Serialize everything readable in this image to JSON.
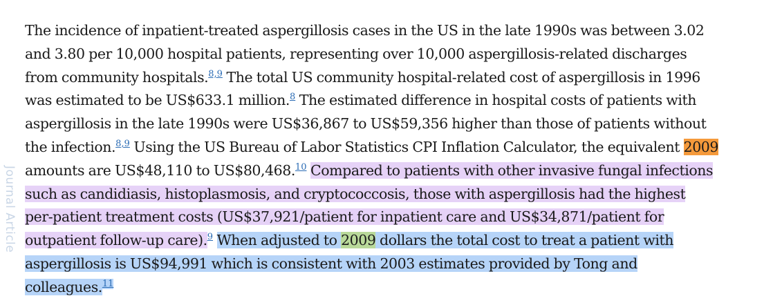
{
  "margin_text": "Journal Article",
  "lines": [
    {
      "segments": [
        {
          "t": "The incidence of inpatient-treated aspergillosis cases in the US in the late 1990s was between 3.02",
          "h": ""
        }
      ]
    },
    {
      "segments": [
        {
          "t": "and 3.80 per 10,000 hospital patients, representing over 10,000 aspergillosis-related discharges",
          "h": ""
        }
      ]
    },
    {
      "segments": [
        {
          "t": "from community hospitals.",
          "h": ""
        },
        {
          "t": "8,9",
          "h": "",
          "ref": true
        },
        {
          "t": " The total US community hospital-related cost of aspergillosis in 1996",
          "h": ""
        }
      ]
    },
    {
      "segments": [
        {
          "t": "was estimated to be US$633.1 million.",
          "h": ""
        },
        {
          "t": "8",
          "h": "",
          "ref": true
        },
        {
          "t": " The estimated difference in hospital costs of patients with",
          "h": ""
        }
      ]
    },
    {
      "segments": [
        {
          "t": "aspergillosis in the late 1990s were US$36,867 to US$59,356 higher than those of patients without",
          "h": ""
        }
      ]
    },
    {
      "segments": [
        {
          "t": "the infection.",
          "h": ""
        },
        {
          "t": "8,9",
          "h": "",
          "ref": true
        },
        {
          "t": " Using the US Bureau of Labor Statistics CPI Inflation Calculator, the equivalent ",
          "h": ""
        },
        {
          "t": "2009",
          "h": "orange"
        }
      ]
    },
    {
      "segments": [
        {
          "t": "amounts are US$48,110 to US$80,468.",
          "h": ""
        },
        {
          "t": "10",
          "h": "",
          "ref": true
        },
        {
          "t": " ",
          "h": ""
        },
        {
          "t": "Compared to patients with other invasive fungal infections",
          "h": "purple"
        }
      ]
    },
    {
      "segments": [
        {
          "t": "such as candidiasis, histoplasmosis, and cryptococcosis, those with aspergillosis had the highest",
          "h": "purple"
        }
      ]
    },
    {
      "segments": [
        {
          "t": "per-patient treatment costs (US$37,921/patient for inpatient care and US$34,871/patient for",
          "h": "purple"
        }
      ]
    },
    {
      "segments": [
        {
          "t": "outpatient follow-up care).",
          "h": "purple"
        },
        {
          "t": "9",
          "h": "",
          "ref": true
        },
        {
          "t": " ",
          "h": ""
        },
        {
          "t": "When adjusted to ",
          "h": "blue"
        },
        {
          "t": "2009",
          "h": "green"
        },
        {
          "t": " dollars the total cost to treat a patient with",
          "h": "blue"
        }
      ]
    },
    {
      "segments": [
        {
          "t": "aspergillosis is US$94,991 which is consistent with 2003 estimates provided by Tong and",
          "h": "blue"
        }
      ]
    },
    {
      "segments": [
        {
          "t": "colleagues.",
          "h": "blue"
        },
        {
          "t": "11",
          "h": "blue",
          "ref": true
        }
      ]
    }
  ],
  "colors": {
    "highlight_purple": "#e6d2f7",
    "highlight_blue": "#b6d4f8",
    "highlight_orange": "#f59a3b",
    "highlight_green": "#b9d99a",
    "link": "#2a6bb4",
    "text": "#1a1a1a"
  }
}
